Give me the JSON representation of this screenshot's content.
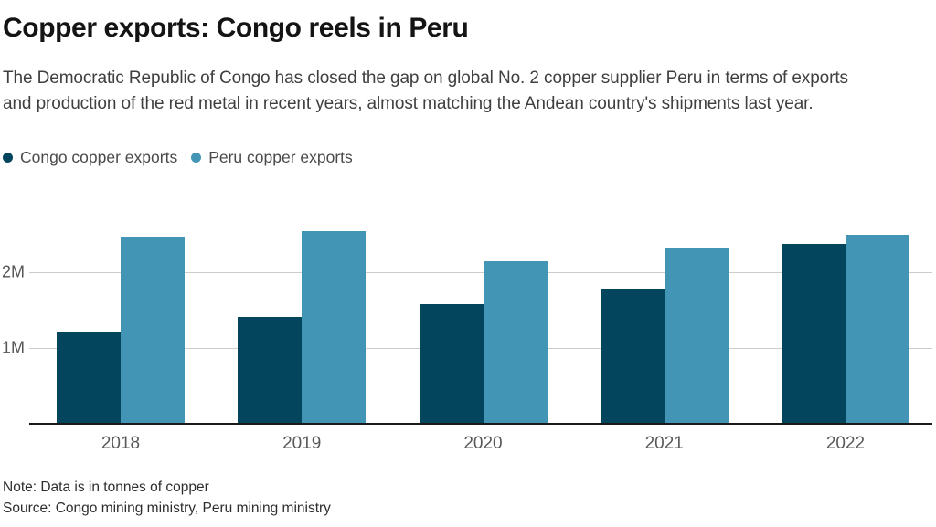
{
  "header": {
    "title": "Copper exports: Congo reels in Peru",
    "subtitle_lines": [
      "The Democratic Republic of Congo has closed the gap on global No. 2 copper supplier Peru in terms of exports",
      "and production of the red metal in recent years, almost matching the Andean country's shipments last year."
    ]
  },
  "legend": [
    {
      "label": "Congo copper exports",
      "color": "#04455e"
    },
    {
      "label": "Peru copper exports",
      "color": "#4295b5"
    }
  ],
  "chart_data": {
    "type": "bar",
    "title": "Copper exports: Congo reels in Peru",
    "categories": [
      "2018",
      "2019",
      "2020",
      "2021",
      "2022"
    ],
    "series": [
      {
        "name": "Congo copper exports",
        "color": "#04455e",
        "values": [
          1.21,
          1.41,
          1.58,
          1.78,
          2.37
        ]
      },
      {
        "name": "Peru copper exports",
        "color": "#4295b5",
        "values": [
          2.47,
          2.54,
          2.15,
          2.31,
          2.49
        ]
      }
    ],
    "unit": "millions of tonnes",
    "y_ticks": [
      {
        "value": 1,
        "label": "1M"
      },
      {
        "value": 2,
        "label": "2M"
      }
    ],
    "ylim": [
      0,
      2.9
    ],
    "grid": "horizontal",
    "legend_position": "top-left"
  },
  "footer": {
    "note": "Note: Data is in tonnes of copper",
    "source": "Source: Congo mining ministry, Peru mining ministry"
  }
}
